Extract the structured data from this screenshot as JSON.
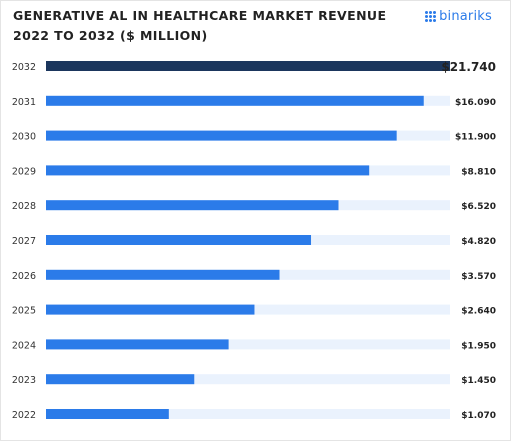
{
  "header": {
    "title_line1": "GENERATIVE AL IN HEALTHCARE MARKET REVENUE",
    "title_line2": "2022 TO 2032 ($ MILLION)",
    "logo_text": "binariks"
  },
  "colors": {
    "bar": "#2b7be9",
    "highlight_bar": "#1b365d",
    "track": "#eaf2fd",
    "logo": "#2b7be9"
  },
  "chart_data": {
    "type": "bar",
    "orientation": "horizontal",
    "title": "GENERATIVE AL IN HEALTHCARE MARKET REVENUE 2022 TO 2032 ($ MILLION)",
    "categories": [
      "2032",
      "2031",
      "2030",
      "2029",
      "2028",
      "2027",
      "2026",
      "2025",
      "2024",
      "2023",
      "2022"
    ],
    "values": [
      21.74,
      16.09,
      11.9,
      8.81,
      6.52,
      4.82,
      3.57,
      2.64,
      1.95,
      1.45,
      1.07
    ],
    "value_labels": [
      "$21.740",
      "$16.090",
      "$11.900",
      "$8.810",
      "$6.520",
      "$4.820",
      "$3.570",
      "$2.640",
      "$1.950",
      "$1.450",
      "$1.070"
    ],
    "bar_lengths": [
      1.0,
      0.935,
      0.868,
      0.8,
      0.724,
      0.656,
      0.578,
      0.516,
      0.452,
      0.367,
      0.304
    ],
    "highlight_index": 0,
    "grid": false,
    "legend": "none"
  }
}
